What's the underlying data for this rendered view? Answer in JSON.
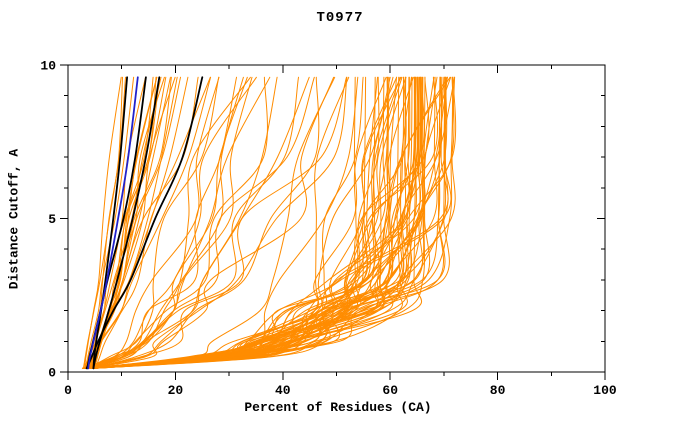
{
  "chart_data": {
    "type": "line",
    "title": "T0977",
    "xlabel": "Percent of Residues (CA)",
    "ylabel": "Distance Cutoff, A",
    "x_axis": {
      "label": "Percent of Residues (CA)",
      "min": 0,
      "max": 100,
      "major_ticks": [
        0,
        20,
        40,
        60,
        80,
        100
      ],
      "minor_tick_step": 10
    },
    "y_axis": {
      "label": "Distance Cutoff, A",
      "min": 0,
      "max": 10,
      "major_ticks": [
        0,
        5,
        10
      ],
      "minor_tick_step": 1
    },
    "grid": false,
    "legend": "none",
    "curve_cutoff_max": 9.6,
    "curve_cutoff_min": 0.12,
    "start_percent_range": [
      2.5,
      5
    ],
    "profile_cutoffs": [
      0,
      0.5,
      1,
      2,
      3,
      5,
      7,
      9.6
    ],
    "colors": {
      "server_models": "#ff8c00",
      "highlighted_models": "#000000",
      "selected_model": "#2222cc",
      "axis": "#000000",
      "background": "#ffffff"
    },
    "series_groups": [
      {
        "name": "server-models-left-cluster",
        "color": "#ff8c00",
        "stroke_width": 1,
        "count": 22,
        "seed": 11,
        "top_percent_range": [
          9,
          27
        ],
        "bias": 1.0,
        "jitter": 0.3,
        "profile": [
          0,
          0.06,
          0.13,
          0.27,
          0.4,
          0.6,
          0.79,
          1.0
        ]
      },
      {
        "name": "server-models-middle",
        "color": "#ff8c00",
        "stroke_width": 1,
        "count": 18,
        "seed": 22,
        "top_percent_range": [
          28,
          52
        ],
        "bias": 1.0,
        "jitter": 0.5,
        "profile": [
          0,
          0.22,
          0.33,
          0.47,
          0.58,
          0.72,
          0.86,
          1.0
        ]
      },
      {
        "name": "server-models-dense-band",
        "color": "#ff8c00",
        "stroke_width": 1,
        "count": 72,
        "seed": 33,
        "top_percent_range": [
          47,
          72
        ],
        "bias": 0.55,
        "jitter": 0.38,
        "profile": [
          0,
          0.42,
          0.6,
          0.76,
          0.85,
          0.92,
          0.97,
          1.0
        ]
      },
      {
        "name": "highlighted-models-black",
        "color": "#000000",
        "stroke_width": 1.8,
        "count": 4,
        "seed": 44,
        "top_percents": [
          11,
          14.5,
          17,
          25
        ],
        "jitter": 0.08,
        "profile": [
          0,
          0.05,
          0.11,
          0.24,
          0.37,
          0.6,
          0.8,
          1.0
        ]
      },
      {
        "name": "selected-model-blue",
        "color": "#2222cc",
        "stroke_width": 1.8,
        "count": 1,
        "seed": 55,
        "top_percents": [
          13
        ],
        "jitter": 0.06,
        "profile": [
          0,
          0.05,
          0.12,
          0.26,
          0.4,
          0.62,
          0.81,
          1.0
        ]
      }
    ]
  }
}
